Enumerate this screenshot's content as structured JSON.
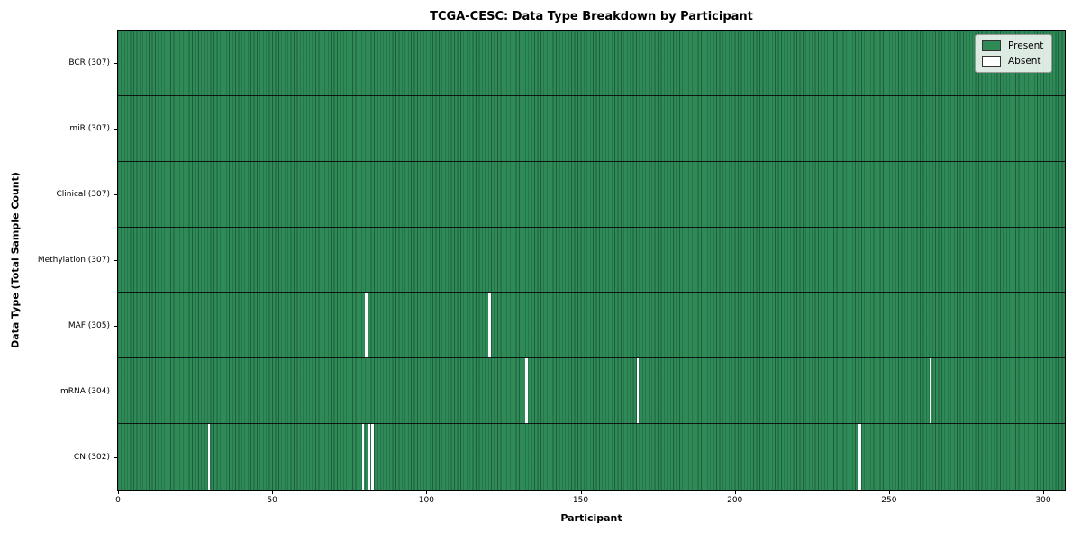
{
  "chart_data": {
    "type": "heatmap",
    "title": "TCGA-CESC: Data Type Breakdown by Participant",
    "xlabel": "Participant",
    "ylabel": "Data Type (Total Sample Count)",
    "n_participants": 307,
    "xlim": [
      0,
      307
    ],
    "xticks": [
      0,
      50,
      100,
      150,
      200,
      250,
      300
    ],
    "legend_position": "upper right",
    "grid": false,
    "rows": [
      {
        "label": "BCR (307)",
        "name": "BCR",
        "count": 307,
        "absent": []
      },
      {
        "label": "miR (307)",
        "name": "miR",
        "count": 307,
        "absent": []
      },
      {
        "label": "Clinical (307)",
        "name": "Clinical",
        "count": 307,
        "absent": []
      },
      {
        "label": "Methylation (307)",
        "name": "Methylation",
        "count": 307,
        "absent": []
      },
      {
        "label": "MAF (305)",
        "name": "MAF",
        "count": 305,
        "absent": [
          80,
          120
        ]
      },
      {
        "label": "mRNA (304)",
        "name": "mRNA",
        "count": 304,
        "absent": [
          132,
          168,
          263
        ]
      },
      {
        "label": "CN (302)",
        "name": "CN",
        "count": 302,
        "absent": [
          29,
          79,
          81,
          82,
          240
        ]
      }
    ],
    "legend": [
      {
        "label": "Present",
        "color": "#2e8b57"
      },
      {
        "label": "Absent",
        "color": "#ffffff"
      }
    ],
    "colors": {
      "present": "#2e8b57",
      "absent": "#ffffff",
      "cell_edge": "rgba(0,0,0,0.32)",
      "row_separator": "rgba(10,10,10,0.9)",
      "plot_border": "#000000"
    }
  }
}
